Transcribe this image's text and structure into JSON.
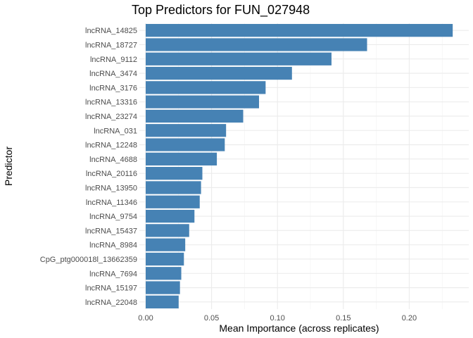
{
  "chart_data": {
    "type": "bar",
    "orientation": "horizontal",
    "title": "Top Predictors for FUN_027948",
    "xlabel": "Mean Importance (across replicates)",
    "ylabel": "Predictor",
    "xlim": [
      0,
      0.245
    ],
    "x_ticks": [
      "0.00",
      "0.05",
      "0.10",
      "0.15",
      "0.20"
    ],
    "x_tick_values": [
      0,
      0.05,
      0.1,
      0.15,
      0.2
    ],
    "grid": true,
    "bar_color": "#4682b4",
    "categories": [
      "lncRNA_14825",
      "lncRNA_18727",
      "lncRNA_9112",
      "lncRNA_3474",
      "lncRNA_3176",
      "lncRNA_13316",
      "lncRNA_23274",
      "lncRNA_031",
      "lncRNA_12248",
      "lncRNA_4688",
      "lncRNA_20116",
      "lncRNA_13950",
      "lncRNA_11346",
      "lncRNA_9754",
      "lncRNA_15437",
      "lncRNA_8984",
      "CpG_ptg000018l_13662359",
      "lncRNA_7694",
      "lncRNA_15197",
      "lncRNA_22048"
    ],
    "values": [
      0.233,
      0.168,
      0.141,
      0.111,
      0.091,
      0.086,
      0.074,
      0.061,
      0.06,
      0.054,
      0.043,
      0.042,
      0.041,
      0.037,
      0.033,
      0.03,
      0.029,
      0.027,
      0.026,
      0.025
    ]
  }
}
